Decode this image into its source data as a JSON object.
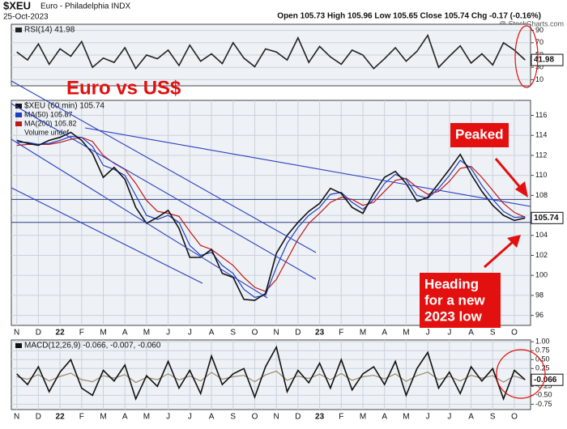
{
  "header": {
    "symbol": "$XEU",
    "name": "Euro - Philadelphia INDX",
    "date": "25-Oct-2023",
    "quote": "Open 105.73 High 105.96 Low 105.65 Close 105.74 Chg -0.17 (-0.16%)",
    "credit": "@ StockCharts.com"
  },
  "chart_data": [
    {
      "type": "line",
      "ylim": [
        0,
        100
      ],
      "yticks": [
        10,
        30,
        50,
        70,
        90
      ],
      "grid": true,
      "series": [
        {
          "name": "RSI(14) 41.98",
          "color": "#222222",
          "values": [
            55,
            42,
            68,
            35,
            60,
            48,
            72,
            30,
            45,
            38,
            62,
            28,
            50,
            44,
            58,
            33,
            66,
            40,
            52,
            36,
            70,
            45,
            31,
            60,
            55,
            42,
            78,
            38,
            64,
            47,
            35,
            58,
            50,
            28,
            44,
            62,
            40,
            56,
            82,
            30,
            48,
            65,
            37,
            52,
            34,
            70,
            58,
            41.98
          ]
        }
      ]
    },
    {
      "type": "line",
      "ylim": [
        95,
        117.5
      ],
      "yticks": [
        96,
        98,
        100,
        102,
        104,
        106,
        108,
        110,
        112,
        114,
        116
      ],
      "grid": true,
      "categories": [
        "N",
        null,
        "D",
        null,
        "22",
        null,
        "F",
        null,
        "M",
        null,
        "A",
        null,
        "M",
        null,
        "J",
        null,
        "J",
        null,
        "A",
        null,
        "S",
        null,
        "O",
        null,
        "N",
        null,
        "D",
        null,
        "23",
        null,
        "F",
        null,
        "M",
        null,
        "A",
        null,
        "M",
        null,
        "J",
        null,
        "J",
        null,
        "A",
        null,
        "S",
        null,
        "O",
        null
      ],
      "reference_lines": [
        107.6,
        105.3
      ],
      "legend_extra": [
        "Volume undef"
      ],
      "annotations": [
        "Euro vs US$",
        "Peaked",
        "Heading",
        "for a new",
        "2023 low"
      ],
      "series": [
        {
          "name": "$XEU (60 min) 105.74",
          "color": "#111111",
          "values": [
            113.5,
            113.2,
            113.0,
            113.5,
            113.8,
            114.3,
            113.5,
            112.2,
            109.8,
            110.8,
            109.6,
            106.8,
            105.2,
            105.8,
            106.5,
            104.7,
            101.8,
            101.8,
            102.6,
            100.2,
            99.8,
            97.6,
            97.5,
            98.2,
            102.2,
            104.0,
            105.3,
            106.4,
            107.2,
            108.7,
            108.2,
            106.8,
            106.2,
            108.2,
            109.8,
            110.4,
            109.2,
            107.4,
            107.8,
            109.2,
            110.6,
            112.1,
            110.1,
            108.4,
            107.0,
            106.0,
            105.5,
            105.74
          ]
        },
        {
          "name": "MA(50) 105.87",
          "color": "#1f3fbf",
          "values": [
            113.3,
            113.3,
            113.1,
            113.2,
            113.5,
            113.9,
            113.8,
            112.9,
            111.0,
            110.6,
            110.0,
            108.0,
            106.0,
            105.6,
            106.0,
            105.3,
            103.0,
            102.0,
            102.3,
            101.0,
            100.2,
            98.6,
            97.8,
            98.0,
            100.8,
            103.2,
            104.8,
            106.0,
            106.8,
            108.1,
            108.3,
            107.3,
            106.6,
            107.6,
            109.2,
            110.1,
            109.6,
            108.0,
            107.7,
            108.7,
            110.0,
            111.5,
            110.7,
            109.0,
            107.6,
            106.4,
            105.8,
            105.87
          ]
        },
        {
          "name": "MA(200) 105.82",
          "color": "#c01818",
          "values": [
            113.0,
            113.1,
            113.1,
            113.1,
            113.3,
            113.6,
            113.8,
            113.4,
            112.0,
            111.2,
            110.6,
            109.2,
            107.5,
            106.4,
            106.2,
            105.9,
            104.4,
            103.0,
            102.6,
            101.8,
            101.0,
            99.8,
            98.8,
            98.4,
            99.6,
            101.6,
            103.6,
            105.2,
            106.2,
            107.3,
            107.8,
            107.6,
            107.0,
            107.3,
            108.4,
            109.5,
            109.7,
            108.8,
            108.1,
            108.4,
            109.4,
            110.7,
            110.9,
            109.8,
            108.5,
            107.2,
            106.3,
            105.82
          ]
        }
      ]
    },
    {
      "type": "line",
      "ylim": [
        -0.9,
        1.05
      ],
      "yticks": [
        {
          "value": 1,
          "label": "1.00"
        },
        {
          "value": 0.75,
          "label": "0.75"
        },
        {
          "value": 0.5,
          "label": "0.50"
        },
        {
          "value": 0.25,
          "label": "0.25"
        },
        {
          "value": -0.25,
          "label": "-0.25"
        },
        {
          "value": -0.5,
          "label": "-0.50"
        },
        {
          "value": -0.75,
          "label": "-0.75"
        }
      ],
      "grid": true,
      "categories": [
        "N",
        null,
        "D",
        null,
        "22",
        null,
        "F",
        null,
        "M",
        null,
        "A",
        null,
        "M",
        null,
        "J",
        null,
        "J",
        null,
        "A",
        null,
        "S",
        null,
        "O",
        null,
        "N",
        null,
        "D",
        null,
        "23",
        null,
        "F",
        null,
        "M",
        null,
        "A",
        null,
        "M",
        null,
        "J",
        null,
        "J",
        null,
        "A",
        null,
        "S",
        null,
        "O",
        null
      ],
      "series": [
        {
          "name": "MACD(12,26,9) -0.066, -0.007, -0.060",
          "color": "#111111",
          "values": [
            0.1,
            -0.2,
            0.3,
            -0.4,
            0.15,
            0.5,
            -0.3,
            -0.5,
            0.2,
            -0.1,
            0.35,
            -0.6,
            0.05,
            -0.25,
            0.45,
            -0.3,
            0.2,
            -0.45,
            0.6,
            -0.2,
            0.1,
            0.25,
            -0.55,
            0.3,
            0.85,
            -0.4,
            0.2,
            -0.15,
            0.4,
            -0.3,
            0.5,
            -0.35,
            0.1,
            0.3,
            -0.2,
            0.45,
            -0.5,
            0.25,
            0.7,
            -0.3,
            0.15,
            -0.45,
            0.3,
            -0.1,
            0.25,
            -0.6,
            0.2,
            -0.066
          ]
        },
        {
          "color": "#9a8a6a",
          "values": [
            0.02,
            -0.05,
            0.08,
            -0.1,
            0.03,
            0.12,
            -0.06,
            -0.12,
            0.05,
            -0.02,
            0.08,
            -0.14,
            0.0,
            -0.06,
            0.1,
            -0.07,
            0.04,
            -0.1,
            0.14,
            -0.05,
            0.02,
            0.06,
            -0.12,
            0.07,
            0.18,
            -0.08,
            0.04,
            -0.03,
            0.09,
            -0.06,
            0.11,
            -0.08,
            0.02,
            0.06,
            -0.04,
            0.1,
            -0.11,
            0.05,
            0.15,
            -0.06,
            0.03,
            -0.1,
            0.06,
            -0.02,
            0.05,
            -0.13,
            0.04,
            -0.06
          ]
        }
      ]
    }
  ]
}
